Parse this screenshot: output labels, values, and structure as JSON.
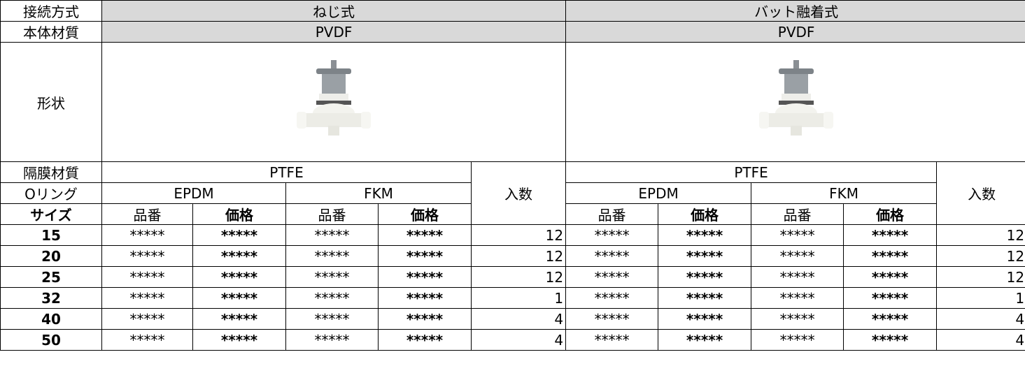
{
  "labels": {
    "connection": "接続方式",
    "body_material": "本体材質",
    "shape": "形状",
    "diaphragm": "隔膜材質",
    "oring": "Oリング",
    "size": "サイズ"
  },
  "groups": [
    {
      "connection": "ねじ式",
      "body_material": "PVDF",
      "diaphragm": "PTFE",
      "orings": [
        "EPDM",
        "FKM"
      ],
      "columns": [
        "品番",
        "価格",
        "品番",
        "価格"
      ],
      "quantity": "入数"
    },
    {
      "connection": "バット融着式",
      "body_material": "PVDF",
      "diaphragm": "PTFE",
      "orings": [
        "EPDM",
        "FKM"
      ],
      "columns": [
        "品番",
        "価格",
        "品番",
        "価格"
      ],
      "quantity": "入数"
    }
  ],
  "rows": [
    {
      "size": 15,
      "cells": [
        [
          "*****",
          "*****",
          "*****",
          "*****",
          12
        ],
        [
          "*****",
          "*****",
          "*****",
          "*****",
          12
        ]
      ]
    },
    {
      "size": 20,
      "cells": [
        [
          "*****",
          "*****",
          "*****",
          "*****",
          12
        ],
        [
          "*****",
          "*****",
          "*****",
          "*****",
          12
        ]
      ]
    },
    {
      "size": 25,
      "cells": [
        [
          "*****",
          "*****",
          "*****",
          "*****",
          12
        ],
        [
          "*****",
          "*****",
          "*****",
          "*****",
          12
        ]
      ]
    },
    {
      "size": 32,
      "cells": [
        [
          "*****",
          "*****",
          "*****",
          "*****",
          1
        ],
        [
          "*****",
          "*****",
          "*****",
          "*****",
          1
        ]
      ]
    },
    {
      "size": 40,
      "cells": [
        [
          "*****",
          "*****",
          "*****",
          "*****",
          4
        ],
        [
          "*****",
          "*****",
          "*****",
          "*****",
          4
        ]
      ]
    },
    {
      "size": 50,
      "cells": [
        [
          "*****",
          "*****",
          "*****",
          "*****",
          4
        ],
        [
          "*****",
          "*****",
          "*****",
          "*****",
          4
        ]
      ]
    }
  ]
}
